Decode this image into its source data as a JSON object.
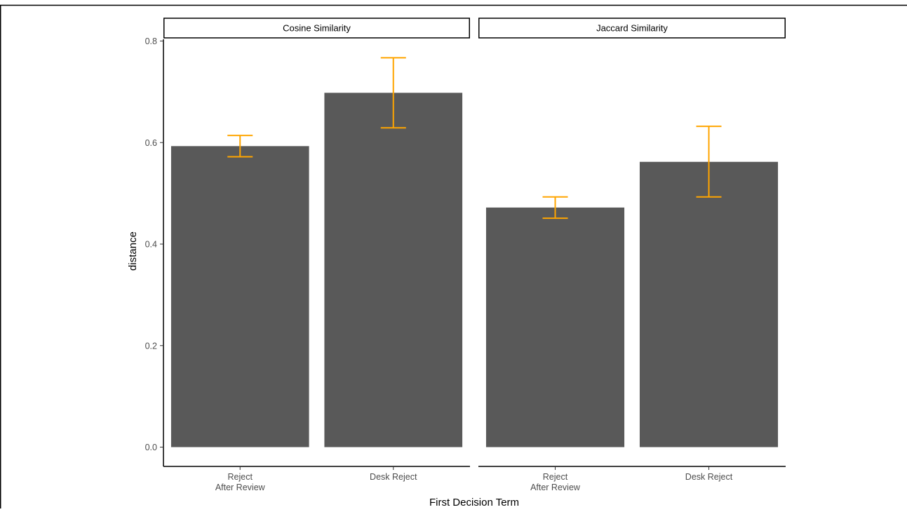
{
  "chart_data": {
    "type": "bar",
    "xlabel": "First Decision Term",
    "ylabel": "distance",
    "ylim": [
      0,
      0.8
    ],
    "yticks": [
      "0.0",
      "0.2",
      "0.4",
      "0.6",
      "0.8"
    ],
    "categories": [
      [
        "Reject",
        "After Review"
      ],
      [
        "Desk Reject"
      ]
    ],
    "grid": false,
    "legend": "none",
    "colors": {
      "bar": "#595959",
      "errorbar": "#FFA500"
    },
    "panels": [
      {
        "name": "Cosine Similarity",
        "values": [
          0.593,
          0.698
        ],
        "error_low": [
          0.572,
          0.629
        ],
        "error_high": [
          0.614,
          0.767
        ]
      },
      {
        "name": "Jaccard Similarity",
        "values": [
          0.472,
          0.562
        ],
        "error_low": [
          0.451,
          0.493
        ],
        "error_high": [
          0.493,
          0.632
        ]
      }
    ]
  }
}
